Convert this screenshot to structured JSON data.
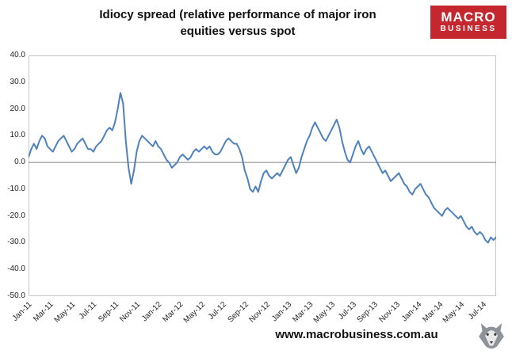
{
  "header": {
    "title_line1": "Idiocy spread (relative performance of major iron",
    "title_line2": "equities versus spot",
    "logo": {
      "line1": "MACRO",
      "line2": "BUSINESS",
      "bg_color": "#c4272e"
    }
  },
  "footer": {
    "url": "www.macrobusiness.com.au"
  },
  "chart_data": {
    "type": "line",
    "title": "Idiocy spread (relative performance of major iron equities versus spot",
    "xlabel": "",
    "ylabel": "",
    "ylim": [
      -50,
      40
    ],
    "yticks": [
      40,
      30,
      20,
      10,
      0,
      -10,
      -20,
      -30,
      -40,
      -50
    ],
    "ytick_labels": [
      "40.0",
      "30.0",
      "20.0",
      "10.0",
      "0.0",
      "-10.0",
      "-20.0",
      "-30.0",
      "-40.0",
      "-50.0"
    ],
    "xtick_labels": [
      "Jan-11",
      "Mar-11",
      "May-11",
      "Jul-11",
      "Sep-11",
      "Nov-11",
      "Jan-12",
      "Mar-12",
      "May-12",
      "Jul-12",
      "Sep-12",
      "Nov-12",
      "Jan-13",
      "Mar-13",
      "May-13",
      "Jul-13",
      "Sep-13",
      "Nov-13",
      "Jan-14",
      "Mar-14",
      "May-14",
      "Jul-14"
    ],
    "xtick_every_points": 8,
    "grid": false,
    "legend": "none",
    "zero_line": true,
    "axis_color": "#808080",
    "border_color": "#c6c6c6",
    "series": [
      {
        "name": "Idiocy spread",
        "color": "#4F81BD",
        "values": [
          2,
          5,
          7,
          5,
          8,
          10,
          9,
          6,
          5,
          4,
          6,
          8,
          9,
          10,
          8,
          6,
          4,
          5,
          7,
          8,
          9,
          7,
          5,
          5,
          4,
          6,
          7,
          8,
          10,
          12,
          13,
          12,
          15,
          20,
          26,
          22,
          8,
          -2,
          -8,
          -3,
          4,
          8,
          10,
          9,
          8,
          7,
          6,
          8,
          6,
          5,
          3,
          1,
          0,
          -2,
          -1,
          0,
          2,
          3,
          2,
          1,
          2,
          4,
          5,
          4,
          5,
          6,
          5,
          6,
          4,
          3,
          3,
          4,
          6,
          8,
          9,
          8,
          7,
          7,
          5,
          2,
          -3,
          -6,
          -10,
          -11,
          -9,
          -11,
          -7,
          -4,
          -3,
          -5,
          -6,
          -5,
          -4,
          -5,
          -3,
          -1,
          1,
          2,
          -1,
          -4,
          -2,
          2,
          5,
          8,
          10,
          13,
          15,
          13,
          11,
          9,
          8,
          10,
          12,
          14,
          16,
          13,
          8,
          4,
          1,
          0,
          3,
          6,
          8,
          5,
          3,
          5,
          6,
          4,
          2,
          0,
          -2,
          -4,
          -3,
          -5,
          -7,
          -6,
          -5,
          -4,
          -6,
          -8,
          -9,
          -11,
          -12,
          -10,
          -9,
          -8,
          -10,
          -12,
          -13,
          -15,
          -17,
          -18,
          -19,
          -20,
          -18,
          -17,
          -18,
          -19,
          -20,
          -21,
          -20,
          -22,
          -24,
          -25,
          -24,
          -26,
          -27,
          -26,
          -27,
          -29,
          -30,
          -28,
          -29,
          -28
        ]
      }
    ]
  }
}
